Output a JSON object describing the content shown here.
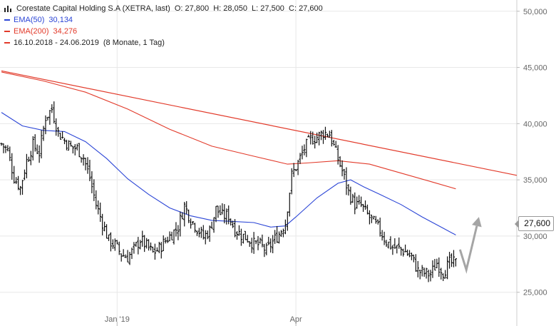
{
  "header": {
    "title": "Corestate Capital Holding S.A (XETRA, last)",
    "ohlc": "O: 27,800  H: 28,050  L: 27,500  C: 27,600",
    "ema50_label": "EMA(50)",
    "ema50_value": "30,134",
    "ema200_label": "EMA(200)",
    "ema200_value": "34,276",
    "range": "16.10.2018 - 24.06.2019",
    "period": "(8 Monate, 1 Tag)",
    "icon": "bar-chart-icon"
  },
  "colors": {
    "price": "#111111",
    "ema50": "#2b45d6",
    "ema200": "#e23a2a",
    "trend": "#e23a2a",
    "arrow": "#a5a5a5",
    "grid": "#e8e8e8"
  },
  "chart_data": {
    "type": "line",
    "ylim": [
      22000,
      51000
    ],
    "y_ticks": [
      {
        "value": 25000,
        "label": "25,000"
      },
      {
        "value": 30000,
        "label": "30,000"
      },
      {
        "value": 35000,
        "label": "35,000"
      },
      {
        "value": 40000,
        "label": "40,000"
      },
      {
        "value": 45000,
        "label": "45,000"
      },
      {
        "value": 50000,
        "label": "50,000"
      }
    ],
    "x_ticks": [
      {
        "index": 55,
        "label": "Jan '19"
      },
      {
        "index": 140,
        "label": "Apr"
      }
    ],
    "x_count": 245,
    "last_value_label": "27,600",
    "price_series": [
      {
        "i": 0,
        "v": 38200
      },
      {
        "i": 3,
        "v": 37600
      },
      {
        "i": 6,
        "v": 35200
      },
      {
        "i": 9,
        "v": 34300
      },
      {
        "i": 12,
        "v": 36700
      },
      {
        "i": 15,
        "v": 38100
      },
      {
        "i": 18,
        "v": 37400
      },
      {
        "i": 21,
        "v": 40600
      },
      {
        "i": 24,
        "v": 41300
      },
      {
        "i": 27,
        "v": 39200
      },
      {
        "i": 30,
        "v": 38500
      },
      {
        "i": 33,
        "v": 37900
      },
      {
        "i": 36,
        "v": 37800
      },
      {
        "i": 39,
        "v": 37000
      },
      {
        "i": 42,
        "v": 35200
      },
      {
        "i": 45,
        "v": 32800
      },
      {
        "i": 48,
        "v": 31200
      },
      {
        "i": 51,
        "v": 29600
      },
      {
        "i": 54,
        "v": 29200
      },
      {
        "i": 57,
        "v": 28400
      },
      {
        "i": 60,
        "v": 28100
      },
      {
        "i": 63,
        "v": 28800
      },
      {
        "i": 66,
        "v": 29700
      },
      {
        "i": 69,
        "v": 29100
      },
      {
        "i": 72,
        "v": 28500
      },
      {
        "i": 75,
        "v": 28900
      },
      {
        "i": 78,
        "v": 29600
      },
      {
        "i": 81,
        "v": 30200
      },
      {
        "i": 84,
        "v": 30800
      },
      {
        "i": 87,
        "v": 32700
      },
      {
        "i": 90,
        "v": 31500
      },
      {
        "i": 93,
        "v": 30700
      },
      {
        "i": 96,
        "v": 29900
      },
      {
        "i": 99,
        "v": 30500
      },
      {
        "i": 102,
        "v": 32400
      },
      {
        "i": 105,
        "v": 31800
      },
      {
        "i": 108,
        "v": 31800
      },
      {
        "i": 111,
        "v": 30600
      },
      {
        "i": 114,
        "v": 30100
      },
      {
        "i": 117,
        "v": 29800
      },
      {
        "i": 120,
        "v": 29300
      },
      {
        "i": 123,
        "v": 29200
      },
      {
        "i": 126,
        "v": 28700
      },
      {
        "i": 129,
        "v": 29500
      },
      {
        "i": 132,
        "v": 30200
      },
      {
        "i": 135,
        "v": 31200
      },
      {
        "i": 138,
        "v": 35400
      },
      {
        "i": 141,
        "v": 36500
      },
      {
        "i": 144,
        "v": 37800
      },
      {
        "i": 147,
        "v": 38600
      },
      {
        "i": 150,
        "v": 38800
      },
      {
        "i": 153,
        "v": 39200
      },
      {
        "i": 156,
        "v": 39100
      },
      {
        "i": 159,
        "v": 37400
      },
      {
        "i": 162,
        "v": 35800
      },
      {
        "i": 165,
        "v": 33900
      },
      {
        "i": 168,
        "v": 32800
      },
      {
        "i": 171,
        "v": 32700
      },
      {
        "i": 174,
        "v": 31900
      },
      {
        "i": 177,
        "v": 31200
      },
      {
        "i": 180,
        "v": 30500
      },
      {
        "i": 183,
        "v": 29500
      },
      {
        "i": 186,
        "v": 29000
      },
      {
        "i": 189,
        "v": 28900
      },
      {
        "i": 192,
        "v": 28600
      },
      {
        "i": 195,
        "v": 28100
      },
      {
        "i": 198,
        "v": 26900
      },
      {
        "i": 201,
        "v": 26700
      },
      {
        "i": 204,
        "v": 26600
      },
      {
        "i": 207,
        "v": 27600
      },
      {
        "i": 210,
        "v": 26800
      },
      {
        "i": 213,
        "v": 27600
      },
      {
        "i": 216,
        "v": 27600
      }
    ],
    "ema50_series": [
      {
        "i": 0,
        "v": 41000
      },
      {
        "i": 10,
        "v": 39800
      },
      {
        "i": 20,
        "v": 39400
      },
      {
        "i": 30,
        "v": 39300
      },
      {
        "i": 40,
        "v": 38400
      },
      {
        "i": 50,
        "v": 36900
      },
      {
        "i": 60,
        "v": 35100
      },
      {
        "i": 70,
        "v": 33700
      },
      {
        "i": 80,
        "v": 32500
      },
      {
        "i": 90,
        "v": 31800
      },
      {
        "i": 100,
        "v": 31400
      },
      {
        "i": 110,
        "v": 31300
      },
      {
        "i": 120,
        "v": 31200
      },
      {
        "i": 128,
        "v": 30800
      },
      {
        "i": 135,
        "v": 30900
      },
      {
        "i": 140,
        "v": 31700
      },
      {
        "i": 150,
        "v": 33400
      },
      {
        "i": 160,
        "v": 34700
      },
      {
        "i": 166,
        "v": 35000
      },
      {
        "i": 172,
        "v": 34400
      },
      {
        "i": 180,
        "v": 33700
      },
      {
        "i": 190,
        "v": 32800
      },
      {
        "i": 200,
        "v": 31700
      },
      {
        "i": 210,
        "v": 30700
      },
      {
        "i": 216,
        "v": 30100
      }
    ],
    "ema200_series": [
      {
        "i": 0,
        "v": 44600
      },
      {
        "i": 20,
        "v": 43800
      },
      {
        "i": 40,
        "v": 42800
      },
      {
        "i": 60,
        "v": 41300
      },
      {
        "i": 80,
        "v": 39500
      },
      {
        "i": 100,
        "v": 38000
      },
      {
        "i": 120,
        "v": 37100
      },
      {
        "i": 136,
        "v": 36400
      },
      {
        "i": 145,
        "v": 36500
      },
      {
        "i": 160,
        "v": 36700
      },
      {
        "i": 175,
        "v": 36400
      },
      {
        "i": 190,
        "v": 35600
      },
      {
        "i": 205,
        "v": 34800
      },
      {
        "i": 216,
        "v": 34200
      }
    ],
    "trendline": [
      {
        "i": 0,
        "v": 44700
      },
      {
        "i": 245,
        "v": 35400
      }
    ],
    "projection_arrow": [
      {
        "i": 218,
        "v": 28800
      },
      {
        "i": 221,
        "v": 27000
      },
      {
        "i": 227,
        "v": 31700
      }
    ]
  }
}
